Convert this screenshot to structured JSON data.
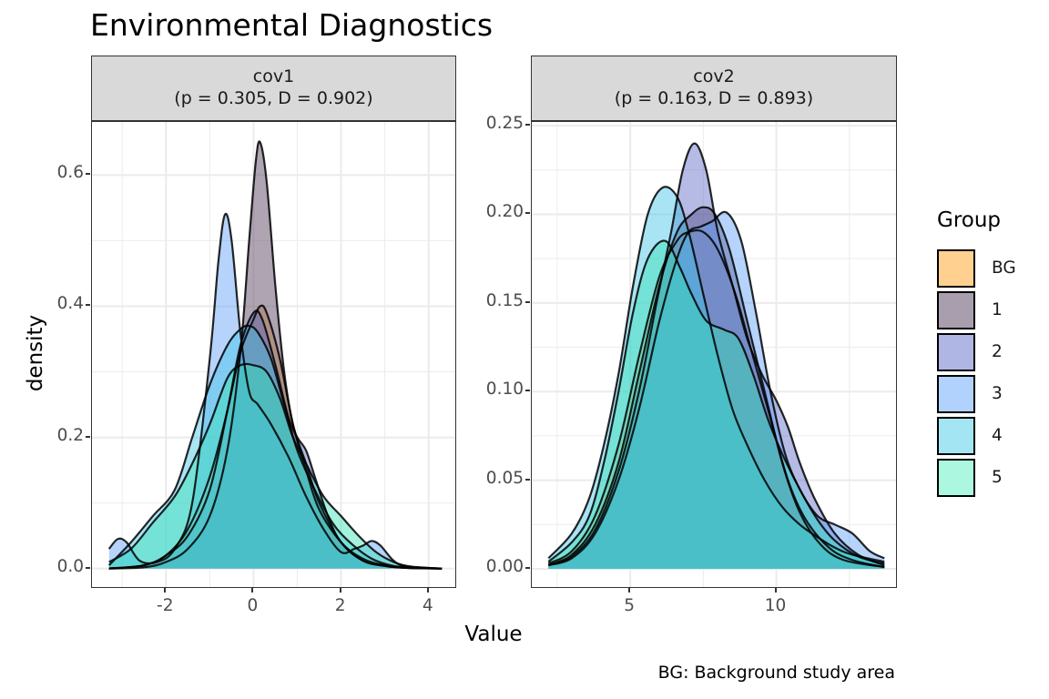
{
  "title": "Environmental Diagnostics",
  "caption": "BG: Background study area",
  "legend": {
    "title": "Group",
    "items": [
      {
        "label": "BG",
        "color": "#FFD08F"
      },
      {
        "label": "1",
        "color": "#A99EAD"
      },
      {
        "label": "2",
        "color": "#B0B6E3"
      },
      {
        "label": "3",
        "color": "#B1D2FC"
      },
      {
        "label": "4",
        "color": "#A3E5F3"
      },
      {
        "label": "5",
        "color": "#ACF7DF"
      }
    ]
  },
  "chart_data": [
    {
      "type": "area",
      "subtype": "density",
      "facet_label": "cov1",
      "facet_stats": "(p = 0.305, D = 0.902)",
      "xlabel": "Value",
      "ylabel": "density",
      "xlim": [
        -3.69,
        4.65
      ],
      "ylim": [
        -0.031,
        0.681
      ],
      "xticks": [
        -2,
        0,
        2,
        4
      ],
      "xtick_labels": [
        "-2",
        "0",
        "2",
        "4"
      ],
      "yticks": [
        0.0,
        0.2,
        0.4,
        0.6
      ],
      "ytick_labels": [
        "0.0",
        "0.2",
        "0.4",
        "0.6"
      ],
      "grid": true,
      "series": [
        {
          "name": "BG",
          "color": "#FF9F1C",
          "alpha": 0.45,
          "x": [
            -3.3,
            -2.5,
            -2.0,
            -1.5,
            -1.0,
            -0.6,
            -0.3,
            0.0,
            0.15,
            0.3,
            0.6,
            0.9,
            1.2,
            1.5,
            2.0,
            2.5,
            3.0,
            3.5,
            4.3
          ],
          "y": [
            0.0,
            0.005,
            0.02,
            0.06,
            0.14,
            0.24,
            0.33,
            0.38,
            0.4,
            0.39,
            0.32,
            0.22,
            0.15,
            0.09,
            0.04,
            0.015,
            0.005,
            0.001,
            0.0
          ]
        },
        {
          "name": "1",
          "color": "#6B5A73",
          "alpha": 0.55,
          "x": [
            -3.3,
            -2.5,
            -2.0,
            -1.5,
            -1.0,
            -0.6,
            -0.3,
            -0.1,
            0.05,
            0.15,
            0.3,
            0.5,
            0.7,
            0.9,
            1.2,
            1.5,
            2.0,
            2.5,
            3.0,
            3.5,
            4.3
          ],
          "y": [
            0.0,
            0.002,
            0.01,
            0.03,
            0.08,
            0.18,
            0.33,
            0.5,
            0.62,
            0.65,
            0.59,
            0.43,
            0.3,
            0.22,
            0.16,
            0.1,
            0.04,
            0.012,
            0.004,
            0.001,
            0.0
          ]
        },
        {
          "name": "2",
          "color": "#5C68C6",
          "alpha": 0.45,
          "x": [
            -3.3,
            -2.5,
            -2.0,
            -1.5,
            -1.0,
            -0.6,
            -0.3,
            0.0,
            0.2,
            0.5,
            0.8,
            1.0,
            1.2,
            1.4,
            1.7,
            2.0,
            2.5,
            3.0,
            3.5,
            4.3
          ],
          "y": [
            0.0,
            0.005,
            0.02,
            0.05,
            0.12,
            0.24,
            0.34,
            0.39,
            0.38,
            0.31,
            0.23,
            0.2,
            0.18,
            0.14,
            0.08,
            0.04,
            0.012,
            0.004,
            0.001,
            0.0
          ]
        },
        {
          "name": "3",
          "color": "#5E9EF7",
          "alpha": 0.45,
          "x": [
            -3.3,
            -3.1,
            -2.9,
            -2.6,
            -2.2,
            -1.8,
            -1.4,
            -1.0,
            -0.8,
            -0.65,
            -0.5,
            -0.3,
            -0.1,
            0.1,
            0.4,
            0.8,
            1.2,
            1.6,
            2.0,
            2.3,
            2.5,
            2.7,
            2.9,
            3.2,
            3.5,
            4.3
          ],
          "y": [
            0.03,
            0.045,
            0.04,
            0.012,
            0.01,
            0.03,
            0.1,
            0.32,
            0.47,
            0.54,
            0.5,
            0.36,
            0.27,
            0.25,
            0.22,
            0.17,
            0.11,
            0.06,
            0.025,
            0.03,
            0.035,
            0.042,
            0.035,
            0.012,
            0.003,
            0.0
          ]
        },
        {
          "name": "4",
          "color": "#40C4E8",
          "alpha": 0.45,
          "x": [
            -3.3,
            -2.8,
            -2.3,
            -1.8,
            -1.4,
            -1.0,
            -0.6,
            -0.3,
            -0.1,
            0.1,
            0.4,
            0.7,
            1.0,
            1.4,
            1.8,
            2.2,
            2.7,
            3.2,
            3.7,
            4.3
          ],
          "y": [
            0.005,
            0.04,
            0.08,
            0.12,
            0.2,
            0.28,
            0.34,
            0.365,
            0.37,
            0.36,
            0.32,
            0.25,
            0.18,
            0.12,
            0.07,
            0.04,
            0.015,
            0.004,
            0.001,
            0.0
          ]
        },
        {
          "name": "5",
          "color": "#35E0B5",
          "alpha": 0.45,
          "x": [
            -3.3,
            -2.8,
            -2.3,
            -1.8,
            -1.4,
            -1.0,
            -0.6,
            -0.3,
            0.0,
            0.3,
            0.6,
            0.9,
            1.2,
            1.6,
            2.0,
            2.4,
            2.8,
            3.2,
            3.6,
            4.3
          ],
          "y": [
            0.01,
            0.03,
            0.07,
            0.11,
            0.16,
            0.22,
            0.29,
            0.31,
            0.31,
            0.3,
            0.26,
            0.2,
            0.16,
            0.11,
            0.08,
            0.05,
            0.025,
            0.01,
            0.003,
            0.0
          ]
        }
      ]
    },
    {
      "type": "area",
      "subtype": "density",
      "facet_label": "cov2",
      "facet_stats": "(p = 0.163, D = 0.893)",
      "xlabel": "Value",
      "ylabel": "density",
      "xlim": [
        1.63,
        14.16
      ],
      "ylim": [
        -0.0113,
        0.2521
      ],
      "xticks": [
        5,
        10
      ],
      "xtick_labels": [
        "5",
        "10"
      ],
      "yticks": [
        0.0,
        0.05,
        0.1,
        0.15,
        0.2,
        0.25
      ],
      "ytick_labels": [
        "0.00",
        "0.05",
        "0.10",
        "0.15",
        "0.20",
        "0.25"
      ],
      "grid": true,
      "series": [
        {
          "name": "BG",
          "color": "#FF9F1C",
          "alpha": 0.45,
          "x": [
            2.2,
            3.0,
            3.8,
            4.6,
            5.3,
            6.0,
            6.6,
            7.0,
            7.5,
            8.0,
            8.6,
            9.2,
            9.8,
            10.4,
            11.0,
            11.8,
            12.6,
            13.7
          ],
          "y": [
            0.003,
            0.01,
            0.03,
            0.07,
            0.12,
            0.165,
            0.185,
            0.19,
            0.19,
            0.18,
            0.155,
            0.12,
            0.085,
            0.05,
            0.028,
            0.012,
            0.005,
            0.001
          ]
        },
        {
          "name": "1",
          "color": "#6B5A73",
          "alpha": 0.55,
          "x": [
            2.2,
            3.0,
            3.8,
            4.6,
            5.3,
            6.0,
            6.6,
            7.1,
            7.5,
            7.9,
            8.4,
            9.0,
            9.6,
            10.2,
            10.8,
            11.5,
            12.3,
            13.7
          ],
          "y": [
            0.002,
            0.008,
            0.025,
            0.06,
            0.11,
            0.16,
            0.19,
            0.2,
            0.204,
            0.2,
            0.18,
            0.14,
            0.1,
            0.06,
            0.032,
            0.014,
            0.005,
            0.001
          ]
        },
        {
          "name": "2",
          "color": "#5C68C6",
          "alpha": 0.45,
          "x": [
            2.2,
            3.0,
            3.8,
            4.6,
            5.3,
            5.9,
            6.4,
            6.8,
            7.2,
            7.6,
            8.0,
            8.5,
            9.0,
            9.5,
            10.0,
            10.4,
            10.8,
            11.3,
            12.0,
            12.8,
            13.7
          ],
          "y": [
            0.002,
            0.007,
            0.022,
            0.055,
            0.1,
            0.15,
            0.19,
            0.225,
            0.24,
            0.225,
            0.19,
            0.16,
            0.13,
            0.11,
            0.095,
            0.08,
            0.06,
            0.04,
            0.02,
            0.008,
            0.002
          ]
        },
        {
          "name": "3",
          "color": "#5E9EF7",
          "alpha": 0.45,
          "x": [
            2.2,
            3.0,
            3.8,
            4.6,
            5.3,
            6.0,
            6.6,
            7.0,
            7.4,
            7.8,
            8.3,
            8.8,
            9.3,
            9.8,
            10.3,
            10.8,
            11.4,
            12.0,
            12.6,
            13.2,
            13.7
          ],
          "y": [
            0.002,
            0.006,
            0.02,
            0.05,
            0.09,
            0.14,
            0.175,
            0.19,
            0.193,
            0.196,
            0.201,
            0.185,
            0.145,
            0.1,
            0.065,
            0.045,
            0.03,
            0.025,
            0.02,
            0.01,
            0.006
          ]
        },
        {
          "name": "4",
          "color": "#40C4E8",
          "alpha": 0.45,
          "x": [
            2.2,
            3.0,
            3.6,
            4.1,
            4.6,
            5.1,
            5.6,
            6.1,
            6.6,
            7.0,
            7.5,
            8.0,
            8.5,
            9.0,
            9.6,
            10.2,
            10.8,
            11.4,
            12.0,
            12.6,
            13.7
          ],
          "y": [
            0.006,
            0.02,
            0.04,
            0.07,
            0.11,
            0.16,
            0.2,
            0.215,
            0.21,
            0.19,
            0.155,
            0.12,
            0.09,
            0.07,
            0.05,
            0.035,
            0.025,
            0.018,
            0.012,
            0.008,
            0.004
          ]
        },
        {
          "name": "5",
          "color": "#35E0B5",
          "alpha": 0.45,
          "x": [
            2.2,
            3.0,
            3.6,
            4.1,
            4.6,
            5.1,
            5.6,
            6.2,
            6.7,
            7.1,
            7.6,
            8.2,
            8.7,
            9.2,
            9.7,
            10.2,
            10.8,
            11.4,
            12.0,
            12.8,
            13.7
          ],
          "y": [
            0.004,
            0.015,
            0.03,
            0.06,
            0.1,
            0.145,
            0.175,
            0.185,
            0.17,
            0.155,
            0.14,
            0.135,
            0.13,
            0.11,
            0.085,
            0.065,
            0.045,
            0.028,
            0.016,
            0.007,
            0.003
          ]
        }
      ]
    }
  ]
}
